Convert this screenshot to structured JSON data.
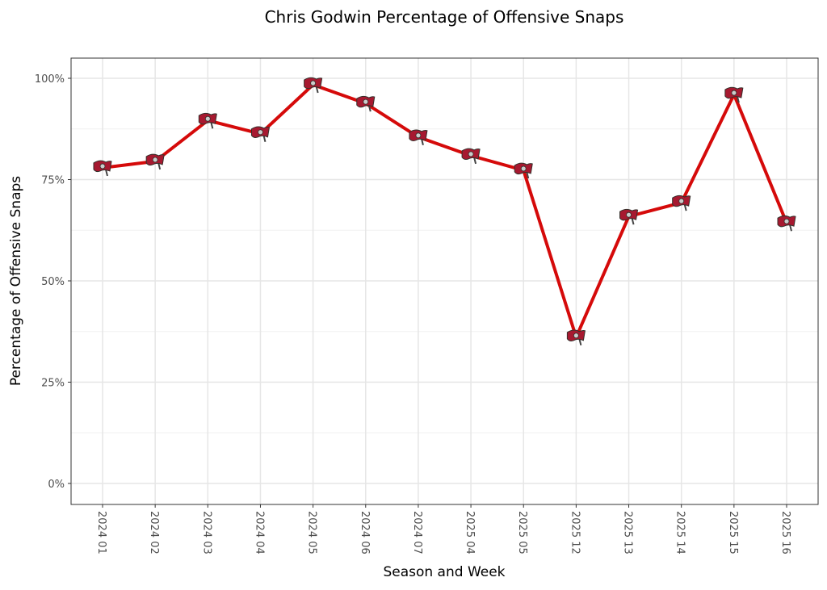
{
  "chart_data": {
    "type": "line",
    "title": "Chris Godwin Percentage of Offensive Snaps",
    "xlabel": "Season and Week",
    "ylabel": "Percentage of Offensive Snaps",
    "categories": [
      "2024 01",
      "2024 02",
      "2024 03",
      "2024 04",
      "2024 05",
      "2024 06",
      "2024 07",
      "2025 04",
      "2025 05",
      "2025 12",
      "2025 13",
      "2025 14",
      "2025 15",
      "2025 16"
    ],
    "values": [
      77.9,
      79.5,
      89.6,
      86.3,
      98.4,
      93.8,
      85.5,
      80.9,
      77.3,
      36.1,
      65.9,
      69.3,
      96.0,
      64.3
    ],
    "ylim": [
      -5,
      105
    ],
    "yticks": [
      0,
      25,
      50,
      75,
      100
    ],
    "ytick_labels": [
      "0%",
      "25%",
      "50%",
      "75%",
      "100%"
    ],
    "grid": true,
    "line_color": "#d50a0a",
    "marker": "buccaneers-flag-logo"
  }
}
